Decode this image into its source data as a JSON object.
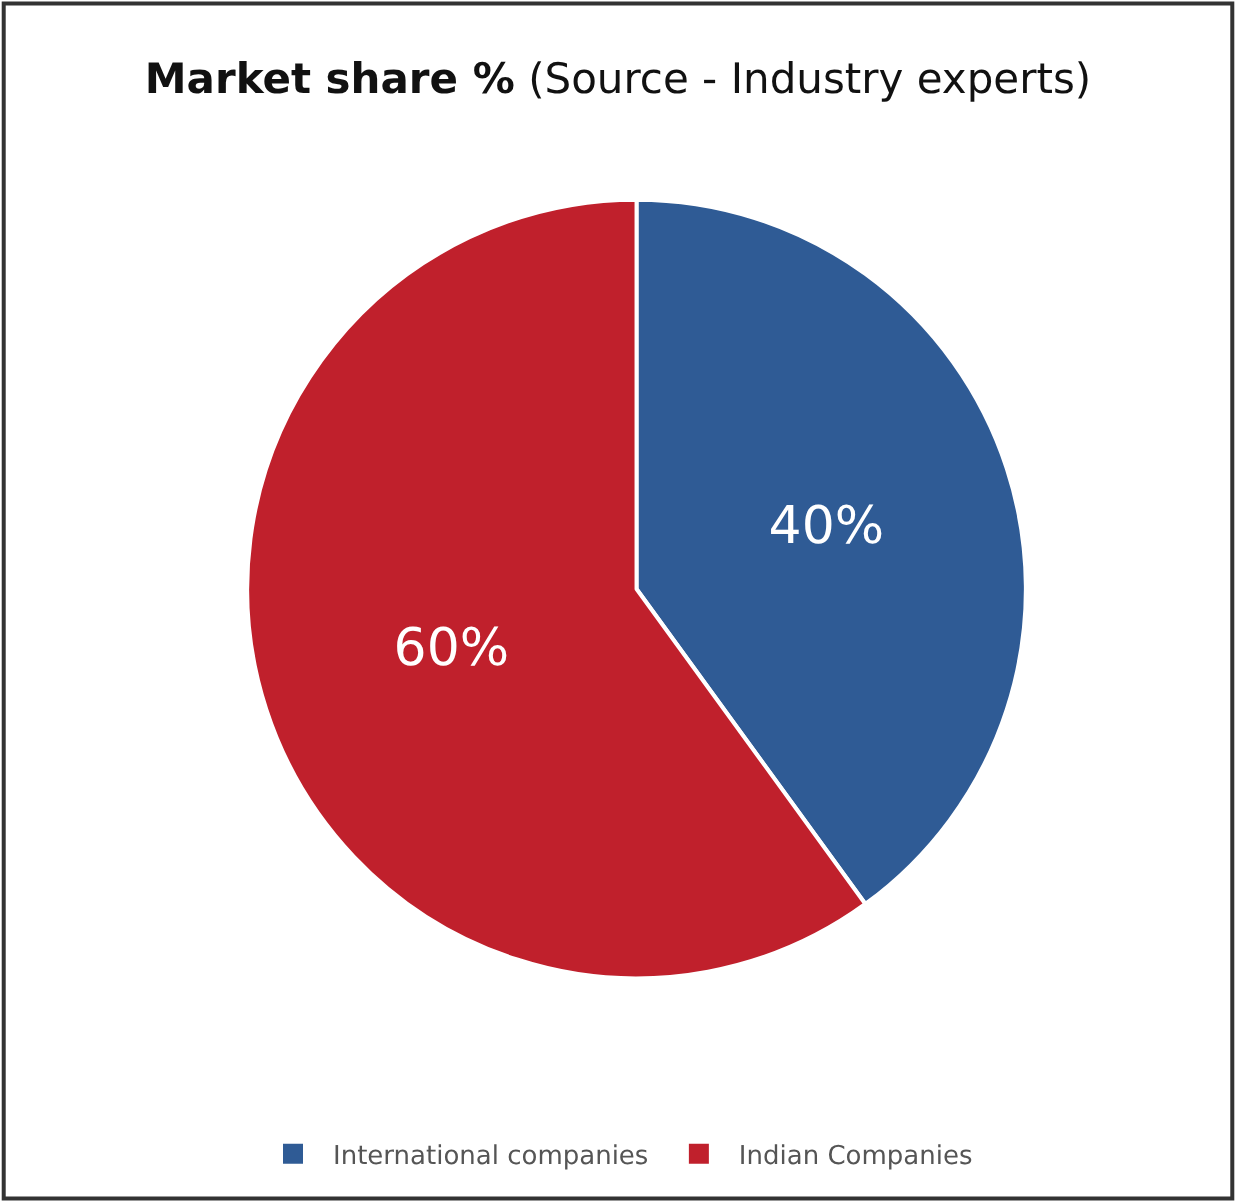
{
  "chart_data": {
    "type": "pie",
    "title": "Market share %",
    "subtitle": "(Source - Industry experts)",
    "categories": [
      "International companies",
      "Indian Companies"
    ],
    "values": [
      40,
      60
    ],
    "colors": [
      "#2f5b95",
      "#c0202c"
    ],
    "value_labels": [
      "40%",
      "60%"
    ],
    "legend": "bottom"
  }
}
